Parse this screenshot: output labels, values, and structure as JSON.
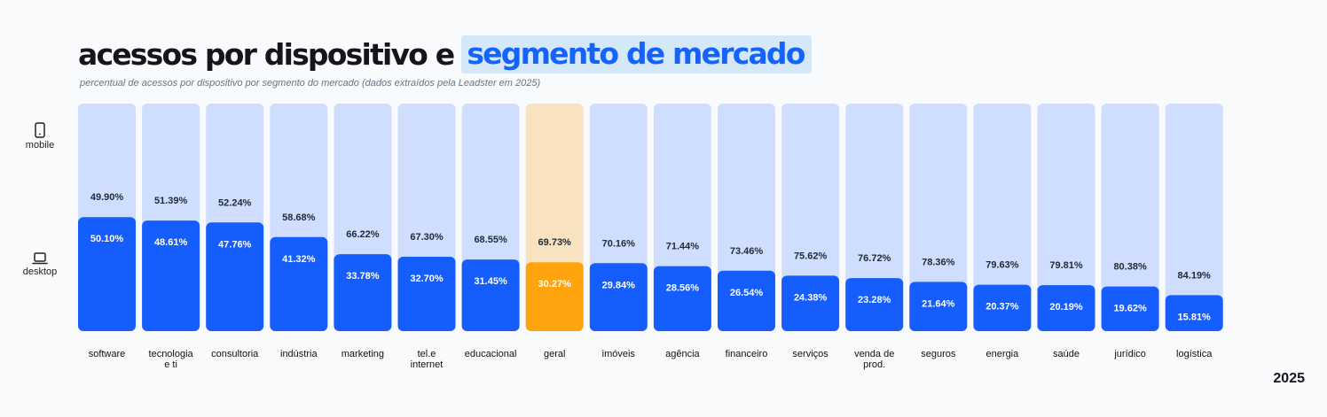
{
  "header": {
    "title_main": "acessos por dispositivo e",
    "title_highlight": "segmento de mercado",
    "subtitle": "percentual de acessos por dispositivo por segmento do mercado (dados extraídos pela Leadster em 2025)",
    "year": "2025"
  },
  "legend": {
    "mobile_label": "mobile",
    "mobile_icon": "smartphone-icon",
    "desktop_label": "desktop",
    "desktop_icon": "laptop-icon"
  },
  "colors": {
    "mobile": "#cfdefe",
    "desktop": "#155dfc",
    "highlight_mobile": "#f8e2c0",
    "highlight_desktop": "#ffa30f",
    "text_dark": "#1f2937",
    "text_light": "#ffffff"
  },
  "chart_data": {
    "type": "bar",
    "stacked": true,
    "orientation": "vertical",
    "highlight_category": "geral",
    "categories": [
      [
        "software"
      ],
      [
        "tecnologia",
        "e ti"
      ],
      [
        "consultoria"
      ],
      [
        "indústria"
      ],
      [
        "marketing"
      ],
      [
        "tel.e",
        "internet"
      ],
      [
        "educacional"
      ],
      [
        "geral"
      ],
      [
        "imóveis"
      ],
      [
        "agência"
      ],
      [
        "financeiro"
      ],
      [
        "serviços"
      ],
      [
        "venda de",
        "prod."
      ],
      [
        "seguros"
      ],
      [
        "energia"
      ],
      [
        "saúde"
      ],
      [
        "jurídico"
      ],
      [
        "logística"
      ]
    ],
    "series": [
      {
        "name": "desktop",
        "values": [
          50.1,
          48.61,
          47.76,
          41.32,
          33.78,
          32.7,
          31.45,
          30.27,
          29.84,
          28.56,
          26.54,
          24.38,
          23.28,
          21.64,
          20.37,
          20.19,
          19.62,
          15.81
        ],
        "labels": [
          "50.10%",
          "48.61%",
          "47.76%",
          "41.32%",
          "33.78%",
          "32.70%",
          "31.45%",
          "30.27%",
          "29.84%",
          "28.56%",
          "26.54%",
          "24.38%",
          "23.28%",
          "21.64%",
          "20.37%",
          "20.19%",
          "19.62%",
          "15.81%"
        ]
      },
      {
        "name": "mobile",
        "values": [
          49.9,
          51.39,
          52.24,
          58.68,
          66.22,
          67.3,
          68.55,
          69.73,
          70.16,
          71.44,
          73.46,
          75.62,
          76.72,
          78.36,
          79.63,
          79.81,
          80.38,
          84.19
        ],
        "labels": [
          "49.90%",
          "51.39%",
          "52.24%",
          "58.68%",
          "66.22%",
          "67.30%",
          "68.55%",
          "69.73%",
          "70.16%",
          "71.44%",
          "73.46%",
          "75.62%",
          "76.72%",
          "78.36%",
          "79.63%",
          "79.81%",
          "80.38%",
          "84.19%"
        ]
      }
    ],
    "ylim": [
      0,
      100
    ],
    "grid": false
  }
}
